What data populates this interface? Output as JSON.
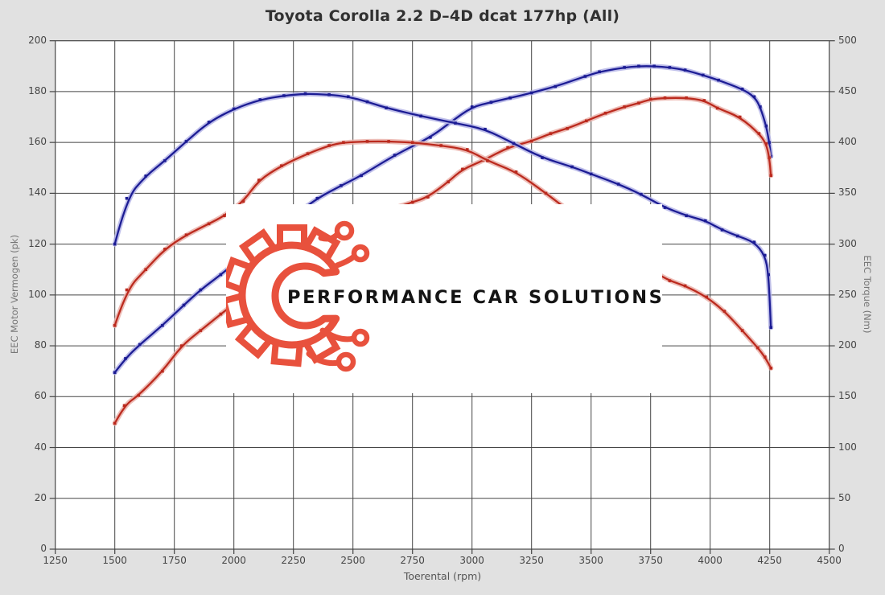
{
  "title": "Toyota Corolla 2.2 D–4D dcat 177hp (All)",
  "watermark": {
    "text": "PERFORMANCE CAR SOLUTIONS",
    "icon": "gear-circuit-icon",
    "accent_color": "#e8513d",
    "text_color": "#141414"
  },
  "colors": {
    "background": "#e1e1e1",
    "plot_background": "#ffffff",
    "grid": "#454545",
    "blue": "#1c1c94",
    "blue_halo": "#b4b4e6",
    "red": "#bb2a1e",
    "red_halo": "#eab2aa",
    "title_text": "#313131",
    "tick_text": "#454545",
    "axis_title_text": "#777777"
  },
  "chart_data": {
    "type": "line",
    "title": "Toyota Corolla 2.2 D–4D dcat 177hp (All)",
    "xlabel": "Toerental (rpm)",
    "ylabel_left": "EEC Motor Vermogen (pk)",
    "ylabel_right": "EEC Torque (Nm)",
    "xlim": [
      1250,
      4500
    ],
    "ylim_left": [
      0,
      200
    ],
    "ylim_right": [
      0,
      500
    ],
    "xticks": [
      1250,
      1500,
      1750,
      2000,
      2250,
      2500,
      2750,
      3000,
      3250,
      3500,
      3750,
      4000,
      4250,
      4500
    ],
    "yticks_left": [
      0,
      20,
      40,
      60,
      80,
      100,
      120,
      140,
      160,
      180,
      200
    ],
    "yticks_right": [
      0,
      50,
      100,
      150,
      200,
      250,
      300,
      350,
      400,
      450,
      500
    ],
    "grid": true,
    "legend": "none",
    "series": [
      {
        "name": "power-blue-tuned",
        "axis": "left",
        "unit": "pk",
        "color_key": "blue",
        "peak": {
          "rpm": 3750,
          "value": 190
        },
        "points": [
          [
            1500,
            69.5
          ],
          [
            1545,
            75
          ],
          [
            1605,
            80.5
          ],
          [
            1700,
            88
          ],
          [
            1790,
            96
          ],
          [
            1860,
            102
          ],
          [
            1945,
            108
          ],
          [
            2050,
            116
          ],
          [
            2150,
            124
          ],
          [
            2250,
            131
          ],
          [
            2350,
            138
          ],
          [
            2450,
            143
          ],
          [
            2535,
            147
          ],
          [
            2675,
            155
          ],
          [
            2825,
            162
          ],
          [
            2910,
            168
          ],
          [
            3000,
            174
          ],
          [
            3080,
            175.8
          ],
          [
            3160,
            177.5
          ],
          [
            3250,
            179.5
          ],
          [
            3350,
            182
          ],
          [
            3475,
            186
          ],
          [
            3535,
            187.8
          ],
          [
            3640,
            189.5
          ],
          [
            3700,
            190
          ],
          [
            3765,
            190
          ],
          [
            3830,
            189.5
          ],
          [
            3895,
            188.5
          ],
          [
            3970,
            186.5
          ],
          [
            4035,
            184.5
          ],
          [
            4135,
            181
          ],
          [
            4185,
            178
          ],
          [
            4210,
            174
          ],
          [
            4235,
            166.5
          ],
          [
            4248,
            160
          ],
          [
            4255,
            154.5
          ]
        ]
      },
      {
        "name": "power-red-stock",
        "axis": "left",
        "unit": "pk",
        "color_key": "red",
        "peak": {
          "rpm": 3850,
          "value": 177.5
        },
        "points": [
          [
            1500,
            49.5
          ],
          [
            1540,
            56.5
          ],
          [
            1600,
            60.5
          ],
          [
            1700,
            70
          ],
          [
            1780,
            80
          ],
          [
            1860,
            86
          ],
          [
            1945,
            92.5
          ],
          [
            2050,
            100
          ],
          [
            2150,
            106.5
          ],
          [
            2250,
            113
          ],
          [
            2350,
            119
          ],
          [
            2450,
            124.5
          ],
          [
            2550,
            129.5
          ],
          [
            2650,
            133.5
          ],
          [
            2750,
            136.5
          ],
          [
            2815,
            138.5
          ],
          [
            2900,
            144.5
          ],
          [
            2960,
            149.5
          ],
          [
            3050,
            153
          ],
          [
            3150,
            158
          ],
          [
            3250,
            160.5
          ],
          [
            3330,
            163.5
          ],
          [
            3400,
            165.5
          ],
          [
            3480,
            168.5
          ],
          [
            3560,
            171.5
          ],
          [
            3640,
            174
          ],
          [
            3700,
            175.5
          ],
          [
            3750,
            177
          ],
          [
            3810,
            177.5
          ],
          [
            3900,
            177.5
          ],
          [
            3975,
            176.5
          ],
          [
            4030,
            173.5
          ],
          [
            4125,
            170
          ],
          [
            4205,
            163.5
          ],
          [
            4235,
            159.5
          ],
          [
            4248,
            154
          ],
          [
            4255,
            147
          ]
        ]
      },
      {
        "name": "torque-blue-tuned",
        "axis": "right",
        "unit": "Nm",
        "color_key": "blue",
        "peak": {
          "rpm": 2300,
          "value": 448
        },
        "points": [
          [
            1500,
            300
          ],
          [
            1550,
            345
          ],
          [
            1630,
            367
          ],
          [
            1710,
            382
          ],
          [
            1800,
            401
          ],
          [
            1895,
            420
          ],
          [
            2000,
            433
          ],
          [
            2110,
            442
          ],
          [
            2210,
            446
          ],
          [
            2300,
            448
          ],
          [
            2400,
            447
          ],
          [
            2480,
            445
          ],
          [
            2560,
            440
          ],
          [
            2640,
            434
          ],
          [
            2785,
            426
          ],
          [
            2930,
            419
          ],
          [
            3055,
            413
          ],
          [
            3175,
            399
          ],
          [
            3295,
            385
          ],
          [
            3420,
            376
          ],
          [
            3500,
            369
          ],
          [
            3615,
            359
          ],
          [
            3710,
            349
          ],
          [
            3810,
            336
          ],
          [
            3900,
            328
          ],
          [
            3980,
            323
          ],
          [
            4050,
            314
          ],
          [
            4115,
            308
          ],
          [
            4185,
            302
          ],
          [
            4230,
            289
          ],
          [
            4245,
            270
          ],
          [
            4255,
            218
          ]
        ]
      },
      {
        "name": "torque-red-stock",
        "axis": "right",
        "unit": "Nm",
        "color_key": "red",
        "peak": {
          "rpm": 2600,
          "value": 401
        },
        "points": [
          [
            1500,
            220
          ],
          [
            1550,
            255
          ],
          [
            1630,
            275
          ],
          [
            1710,
            295
          ],
          [
            1800,
            309
          ],
          [
            1895,
            320
          ],
          [
            1960,
            328
          ],
          [
            2040,
            342
          ],
          [
            2105,
            363
          ],
          [
            2200,
            377
          ],
          [
            2310,
            389
          ],
          [
            2400,
            397
          ],
          [
            2460,
            400
          ],
          [
            2560,
            401
          ],
          [
            2650,
            401
          ],
          [
            2750,
            400
          ],
          [
            2870,
            397
          ],
          [
            2980,
            393
          ],
          [
            3065,
            382
          ],
          [
            3185,
            371
          ],
          [
            3310,
            350
          ],
          [
            3400,
            334
          ],
          [
            3500,
            316
          ],
          [
            3600,
            299
          ],
          [
            3700,
            283
          ],
          [
            3770,
            272
          ],
          [
            3830,
            264
          ],
          [
            3895,
            259
          ],
          [
            3985,
            248
          ],
          [
            4060,
            234
          ],
          [
            4135,
            215
          ],
          [
            4200,
            198
          ],
          [
            4230,
            189
          ],
          [
            4255,
            178
          ]
        ]
      }
    ]
  }
}
